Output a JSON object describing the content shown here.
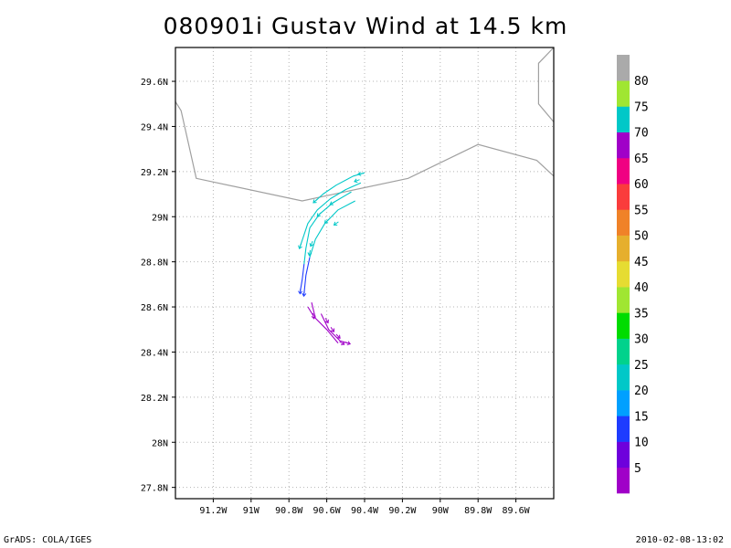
{
  "title": "080901i Gustav Wind at 14.5 km",
  "footer": {
    "left": "GrADS: COLA/IGES",
    "right": "2010-02-08-13:02"
  },
  "map": {
    "lon_range": [
      -91.4,
      -89.4
    ],
    "lat_range": [
      27.75,
      29.75
    ],
    "lon_ticks": [
      {
        "value": -91.2,
        "label": "91.2W"
      },
      {
        "value": -91.0,
        "label": "91W"
      },
      {
        "value": -90.8,
        "label": "90.8W"
      },
      {
        "value": -90.6,
        "label": "90.6W"
      },
      {
        "value": -90.4,
        "label": "90.4W"
      },
      {
        "value": -90.2,
        "label": "90.2W"
      },
      {
        "value": -90.0,
        "label": "90W"
      },
      {
        "value": -89.8,
        "label": "89.8W"
      },
      {
        "value": -89.6,
        "label": "89.6W"
      }
    ],
    "lat_ticks": [
      {
        "value": 29.6,
        "label": "29.6N"
      },
      {
        "value": 29.4,
        "label": "29.4N"
      },
      {
        "value": 29.2,
        "label": "29.2N"
      },
      {
        "value": 29.0,
        "label": "29N"
      },
      {
        "value": 28.8,
        "label": "28.8N"
      },
      {
        "value": 28.6,
        "label": "28.6N"
      },
      {
        "value": 28.4,
        "label": "28.4N"
      },
      {
        "value": 28.2,
        "label": "28.2N"
      },
      {
        "value": 28.0,
        "label": "28N"
      },
      {
        "value": 27.8,
        "label": "27.8N"
      }
    ],
    "grid": "dotted",
    "coastline_color": "#a0a0a0",
    "coastlines": [
      [
        [
          -91.4,
          29.51
        ],
        [
          -91.37,
          29.47
        ],
        [
          -91.29,
          29.17
        ],
        [
          -90.73,
          29.07
        ],
        [
          -90.17,
          29.17
        ],
        [
          -89.8,
          29.32
        ],
        [
          -89.49,
          29.25
        ],
        [
          -89.4,
          29.18
        ]
      ],
      [
        [
          -89.4,
          29.75
        ],
        [
          -89.48,
          29.68
        ],
        [
          -89.48,
          29.5
        ],
        [
          -89.4,
          29.42
        ]
      ]
    ],
    "streamlines": [
      {
        "color": "#00c8c8",
        "points": [
          [
            -90.4,
            29.195
          ],
          [
            -90.46,
            29.18
          ],
          [
            -90.55,
            29.14
          ],
          [
            -90.62,
            29.1
          ],
          [
            -90.66,
            29.07
          ]
        ]
      },
      {
        "color": "#00c8c8",
        "points": [
          [
            -90.42,
            29.15
          ],
          [
            -90.5,
            29.12
          ],
          [
            -90.58,
            29.08
          ],
          [
            -90.65,
            29.03
          ],
          [
            -90.7,
            28.97
          ],
          [
            -90.74,
            28.87
          ]
        ]
      },
      {
        "color": "#00c8c8",
        "points": [
          [
            -90.47,
            29.11
          ],
          [
            -90.57,
            29.06
          ],
          [
            -90.64,
            29.01
          ],
          [
            -90.69,
            28.95
          ],
          [
            -90.71,
            28.86
          ],
          [
            -90.72,
            28.79
          ]
        ]
      },
      {
        "color": "#00c8c8",
        "points": [
          [
            -90.45,
            29.07
          ],
          [
            -90.54,
            29.03
          ],
          [
            -90.61,
            28.97
          ],
          [
            -90.66,
            28.9
          ],
          [
            -90.69,
            28.82
          ]
        ]
      },
      {
        "color": "#1e3cff",
        "points": [
          [
            -90.69,
            28.82
          ],
          [
            -90.71,
            28.74
          ],
          [
            -90.72,
            28.66
          ]
        ]
      },
      {
        "color": "#1e3cff",
        "points": [
          [
            -90.72,
            28.79
          ],
          [
            -90.73,
            28.72
          ],
          [
            -90.74,
            28.67
          ]
        ]
      },
      {
        "color": "#a000c8",
        "points": [
          [
            -90.68,
            28.62
          ],
          [
            -90.66,
            28.55
          ],
          [
            -90.6,
            28.5
          ],
          [
            -90.54,
            28.44
          ]
        ]
      },
      {
        "color": "#a000c8",
        "points": [
          [
            -90.63,
            28.57
          ],
          [
            -90.59,
            28.5
          ],
          [
            -90.53,
            28.45
          ],
          [
            -90.49,
            28.44
          ]
        ]
      },
      {
        "color": "#a000c8",
        "points": [
          [
            -90.7,
            28.6
          ],
          [
            -90.67,
            28.56
          ]
        ]
      }
    ],
    "arrows": [
      {
        "color": "#00c8c8",
        "lon": -90.66,
        "lat": 29.07,
        "dir": 220
      },
      {
        "color": "#00c8c8",
        "lon": -90.57,
        "lat": 29.06,
        "dir": 210
      },
      {
        "color": "#00c8c8",
        "lon": -90.44,
        "lat": 29.16,
        "dir": 200
      },
      {
        "color": "#00c8c8",
        "lon": -90.42,
        "lat": 29.19,
        "dir": 190
      },
      {
        "color": "#00c8c8",
        "lon": -90.64,
        "lat": 29.01,
        "dir": 225
      },
      {
        "color": "#00c8c8",
        "lon": -90.6,
        "lat": 28.98,
        "dir": 225
      },
      {
        "color": "#00c8c8",
        "lon": -90.55,
        "lat": 28.97,
        "dir": 215
      },
      {
        "color": "#00c8c8",
        "lon": -90.74,
        "lat": 28.87,
        "dir": 250
      },
      {
        "color": "#00c8c8",
        "lon": -90.68,
        "lat": 28.88,
        "dir": 250
      },
      {
        "color": "#00c8c8",
        "lon": -90.69,
        "lat": 28.84,
        "dir": 260
      },
      {
        "color": "#1e3cff",
        "lon": -90.72,
        "lat": 28.66,
        "dir": 265
      },
      {
        "color": "#1e3cff",
        "lon": -90.74,
        "lat": 28.67,
        "dir": 265
      },
      {
        "color": "#a000c8",
        "lon": -90.67,
        "lat": 28.56,
        "dir": 280
      },
      {
        "color": "#a000c8",
        "lon": -90.6,
        "lat": 28.54,
        "dir": 300
      },
      {
        "color": "#a000c8",
        "lon": -90.57,
        "lat": 28.5,
        "dir": 305
      },
      {
        "color": "#a000c8",
        "lon": -90.54,
        "lat": 28.47,
        "dir": 315
      },
      {
        "color": "#a000c8",
        "lon": -90.52,
        "lat": 28.44,
        "dir": 330
      },
      {
        "color": "#a000c8",
        "lon": -90.49,
        "lat": 28.44,
        "dir": 340
      }
    ]
  },
  "colorbar": {
    "colors": [
      "#a000c8",
      "#6e00dc",
      "#1e3cff",
      "#00a0ff",
      "#00c8c8",
      "#00d28c",
      "#00dc00",
      "#a0e632",
      "#e6dc32",
      "#e6af2d",
      "#f08228",
      "#fa3c3c",
      "#f00082",
      "#a000c8",
      "#00c8c8",
      "#a0e632",
      "#aaaaaa"
    ],
    "labels": [
      "5",
      "10",
      "15",
      "20",
      "25",
      "30",
      "35",
      "40",
      "45",
      "50",
      "55",
      "60",
      "65",
      "70",
      "75",
      "80"
    ]
  }
}
